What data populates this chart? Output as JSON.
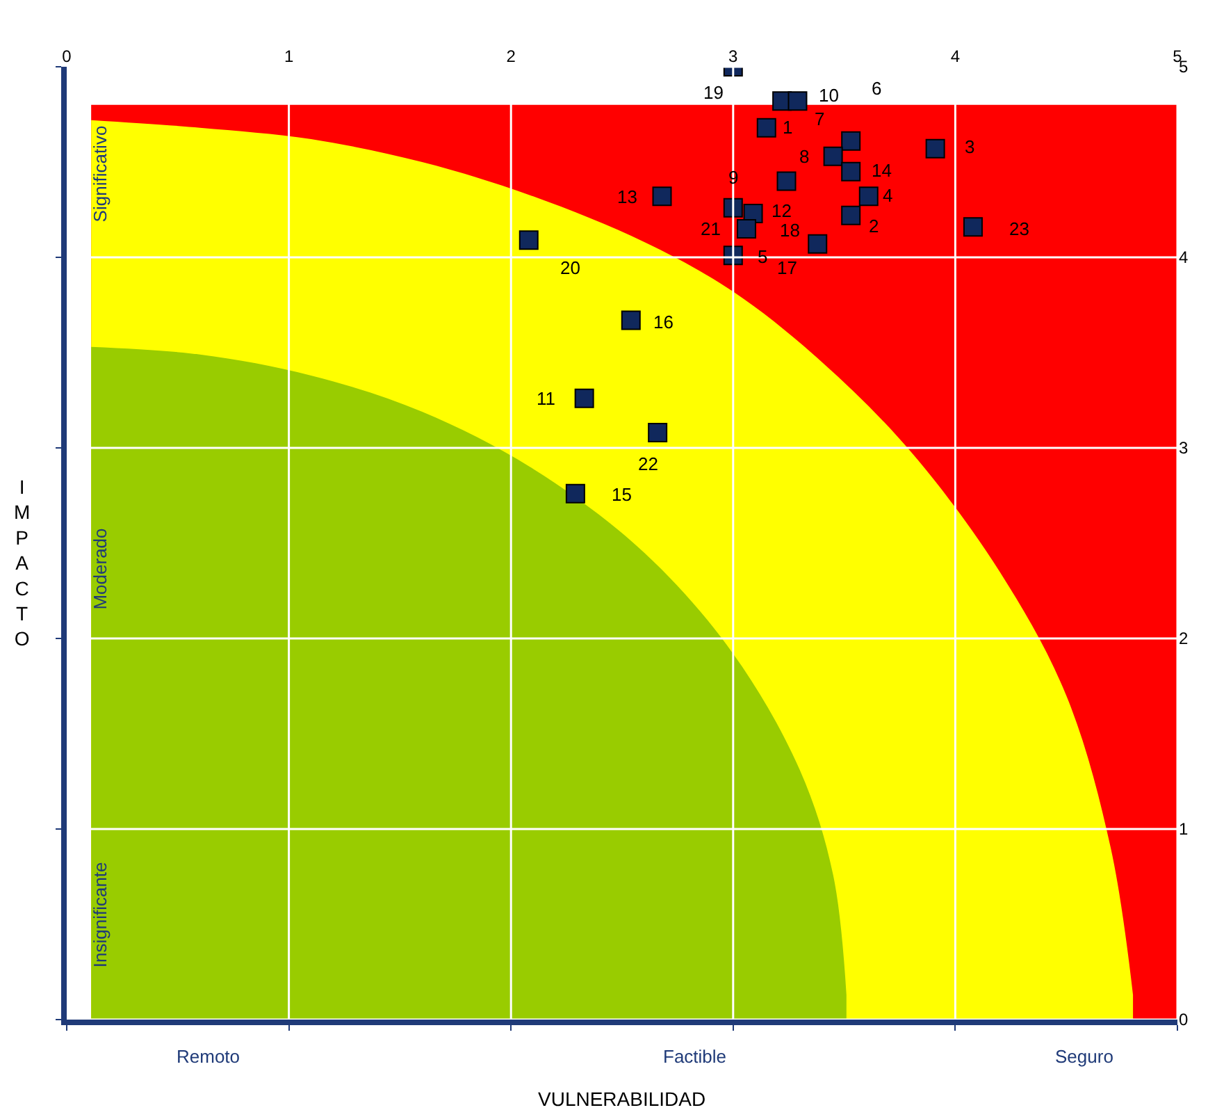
{
  "chart_data": {
    "type": "scatter",
    "xlabel": "VULNERABILIDAD",
    "ylabel": "IMPACTO",
    "xlim": [
      0,
      5
    ],
    "xticks": [
      0,
      1,
      2,
      3,
      4,
      5
    ],
    "ylim": [
      0,
      5
    ],
    "yticks": [
      0,
      1,
      2,
      3,
      4,
      5
    ],
    "grid": true,
    "series": [
      {
        "type": "area",
        "color": "#ff0000",
        "x": [
          0.11,
          5
        ],
        "values": [
          4.8,
          4.8
        ]
      },
      {
        "type": "area",
        "color": "#ffff00",
        "x": [
          0.11,
          0.6,
          1.1,
          1.6,
          2.1,
          2.6,
          3.0,
          3.4,
          3.8,
          4.2,
          4.5,
          4.7,
          4.8
        ],
        "values": [
          4.72,
          4.68,
          4.62,
          4.5,
          4.32,
          4.08,
          3.82,
          3.45,
          2.98,
          2.35,
          1.7,
          0.9,
          0.13
        ]
      },
      {
        "type": "area",
        "color": "#99cc00",
        "x": [
          0.11,
          0.6,
          1.1,
          1.6,
          2.1,
          2.6,
          3.0,
          3.3,
          3.45,
          3.51
        ],
        "values": [
          3.53,
          3.49,
          3.38,
          3.19,
          2.89,
          2.45,
          1.92,
          1.31,
          0.76,
          0.13
        ]
      },
      {
        "marker": "square",
        "color": "#10285c",
        "x": [
          3.15,
          3.53,
          3.91,
          3.61,
          3.0,
          3.53,
          3.22,
          3.45,
          3.0,
          3.29,
          2.33,
          3.09,
          2.68,
          3.53,
          2.29,
          2.54,
          3.38,
          3.24,
          3.0,
          2.08,
          3.06,
          2.66,
          4.08
        ],
        "values": [
          4.68,
          4.22,
          4.57,
          4.32,
          4.01,
          4.61,
          4.82,
          4.53,
          4.26,
          4.82,
          3.26,
          4.23,
          4.32,
          4.45,
          2.76,
          3.67,
          4.07,
          4.4,
          5.0,
          4.09,
          4.15,
          3.08,
          4.16
        ]
      }
    ],
    "annotations": [
      {
        "text": "1",
        "x": 3.15,
        "y": 4.68
      },
      {
        "text": "2",
        "x": 3.53,
        "y": 4.22
      },
      {
        "text": "3",
        "x": 3.91,
        "y": 4.57
      },
      {
        "text": "4",
        "x": 3.61,
        "y": 4.32
      },
      {
        "text": "5",
        "x": 3.0,
        "y": 4.01
      },
      {
        "text": "6",
        "x": 3.53,
        "y": 4.61
      },
      {
        "text": "7",
        "x": 3.22,
        "y": 4.82
      },
      {
        "text": "8",
        "x": 3.45,
        "y": 4.53
      },
      {
        "text": "9",
        "x": 3.0,
        "y": 4.26
      },
      {
        "text": "10",
        "x": 3.29,
        "y": 4.82
      },
      {
        "text": "11",
        "x": 2.33,
        "y": 3.26
      },
      {
        "text": "12",
        "x": 3.09,
        "y": 4.23
      },
      {
        "text": "13",
        "x": 2.68,
        "y": 4.32
      },
      {
        "text": "14",
        "x": 3.53,
        "y": 4.45
      },
      {
        "text": "15",
        "x": 2.29,
        "y": 2.76
      },
      {
        "text": "16",
        "x": 2.54,
        "y": 3.67
      },
      {
        "text": "17",
        "x": 3.38,
        "y": 4.07
      },
      {
        "text": "18",
        "x": 3.24,
        "y": 4.4
      },
      {
        "text": "19",
        "x": 3.0,
        "y": 5.0
      },
      {
        "text": "20",
        "x": 2.08,
        "y": 4.09
      },
      {
        "text": "21",
        "x": 3.06,
        "y": 4.15
      },
      {
        "text": "22",
        "x": 2.66,
        "y": 3.08
      },
      {
        "text": "23",
        "x": 4.08,
        "y": 4.16
      },
      "Significativo",
      "Moderado",
      "Insignificante",
      "Remoto",
      "Factible",
      "Seguro"
    ]
  }
}
